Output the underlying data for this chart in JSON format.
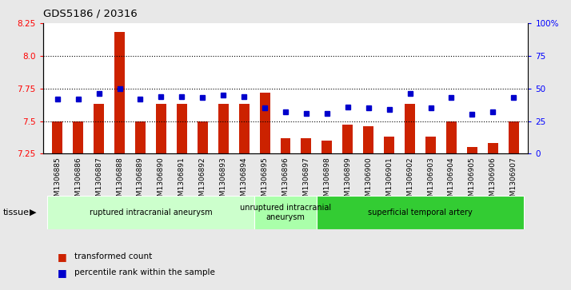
{
  "title": "GDS5186 / 20316",
  "samples": [
    "GSM1306885",
    "GSM1306886",
    "GSM1306887",
    "GSM1306888",
    "GSM1306889",
    "GSM1306890",
    "GSM1306891",
    "GSM1306892",
    "GSM1306893",
    "GSM1306894",
    "GSM1306895",
    "GSM1306896",
    "GSM1306897",
    "GSM1306898",
    "GSM1306899",
    "GSM1306900",
    "GSM1306901",
    "GSM1306902",
    "GSM1306903",
    "GSM1306904",
    "GSM1306905",
    "GSM1306906",
    "GSM1306907"
  ],
  "bar_values": [
    7.5,
    7.5,
    7.63,
    8.18,
    7.5,
    7.63,
    7.63,
    7.5,
    7.63,
    7.63,
    7.72,
    7.37,
    7.37,
    7.35,
    7.47,
    7.46,
    7.38,
    7.63,
    7.38,
    7.5,
    7.3,
    7.33,
    7.5
  ],
  "percentile_values": [
    42,
    42,
    46,
    50,
    42,
    44,
    44,
    43,
    45,
    44,
    35,
    32,
    31,
    31,
    36,
    35,
    34,
    46,
    35,
    43,
    30,
    32,
    43
  ],
  "bar_color": "#cc2200",
  "dot_color": "#0000cc",
  "ylim_left": [
    7.25,
    8.25
  ],
  "ylim_right": [
    0,
    100
  ],
  "yticks_left": [
    7.25,
    7.5,
    7.75,
    8.0,
    8.25
  ],
  "yticks_right": [
    0,
    25,
    50,
    75,
    100
  ],
  "ytick_labels_right": [
    "0",
    "25",
    "50",
    "75",
    "100%"
  ],
  "groups": [
    {
      "label": "ruptured intracranial aneurysm",
      "start": 0,
      "end": 10,
      "color": "#ccffcc"
    },
    {
      "label": "unruptured intracranial\naneurysm",
      "start": 10,
      "end": 13,
      "color": "#aaffaa"
    },
    {
      "label": "superficial temporal artery",
      "start": 13,
      "end": 23,
      "color": "#33cc33"
    }
  ],
  "group_colors": [
    "#ccffcc",
    "#aaffaa",
    "#33cc33"
  ],
  "tissue_label": "tissue",
  "legend_bar_label": "transformed count",
  "legend_dot_label": "percentile rank within the sample",
  "bg_color": "#e8e8e8",
  "plot_bg_color": "#ffffff",
  "title_color": "#000000",
  "bar_width": 0.5
}
